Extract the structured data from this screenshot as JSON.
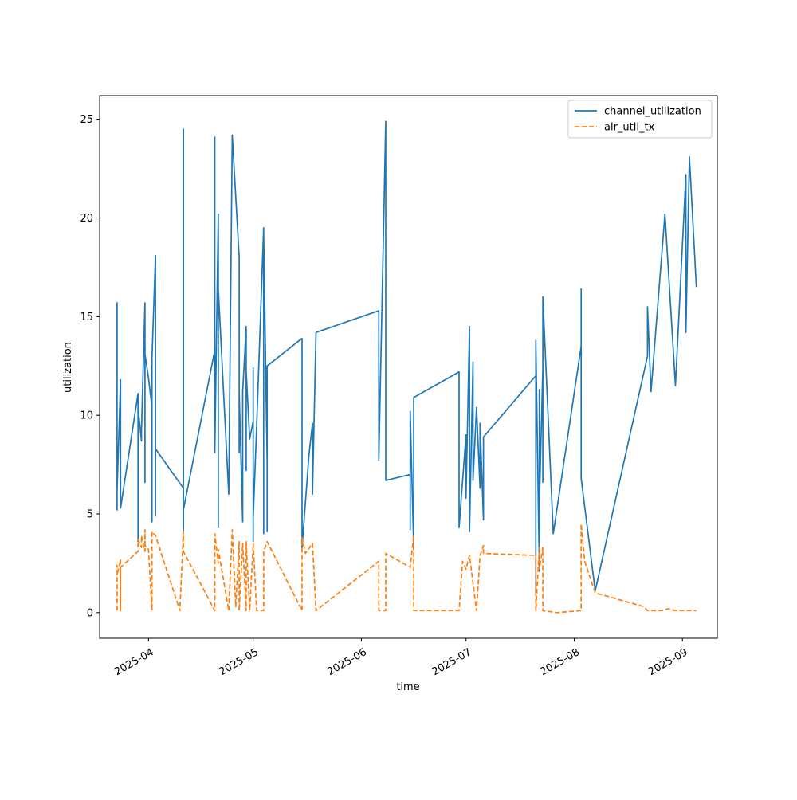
{
  "chart_data": {
    "type": "line",
    "title": "",
    "xlabel": "time",
    "ylabel": "utilization",
    "x_scale": "date",
    "xlim": [
      "2025-03-18",
      "2025-09-11"
    ],
    "ylim": [
      -1.3,
      26.2
    ],
    "grid": false,
    "legend_position": "top-right",
    "x_ticks": [
      {
        "value": "2025-04-01",
        "label": "2025-04"
      },
      {
        "value": "2025-05-01",
        "label": "2025-05"
      },
      {
        "value": "2025-06-01",
        "label": "2025-06"
      },
      {
        "value": "2025-07-01",
        "label": "2025-07"
      },
      {
        "value": "2025-08-01",
        "label": "2025-08"
      },
      {
        "value": "2025-09-01",
        "label": "2025-09"
      }
    ],
    "y_ticks": [
      {
        "value": 0,
        "label": "0"
      },
      {
        "value": 5,
        "label": "5"
      },
      {
        "value": 10,
        "label": "10"
      },
      {
        "value": 15,
        "label": "15"
      },
      {
        "value": 20,
        "label": "20"
      },
      {
        "value": 25,
        "label": "25"
      }
    ],
    "series": [
      {
        "name": "channel_utilization",
        "color": "#1f77b4",
        "style": "solid",
        "points": [
          [
            "2025-03-23",
            10.2
          ],
          [
            "2025-03-23",
            5.2
          ],
          [
            "2025-03-23",
            15.7
          ],
          [
            "2025-03-23",
            6.2
          ],
          [
            "2025-03-24",
            11.8
          ],
          [
            "2025-03-24",
            5.3
          ],
          [
            "2025-03-29",
            11.1
          ],
          [
            "2025-03-29",
            3.6
          ],
          [
            "2025-03-29",
            10.4
          ],
          [
            "2025-03-30",
            8.7
          ],
          [
            "2025-03-30",
            9.2
          ],
          [
            "2025-03-31",
            15.7
          ],
          [
            "2025-03-31",
            6.6
          ],
          [
            "2025-03-31",
            13.1
          ],
          [
            "2025-04-01",
            11.9
          ],
          [
            "2025-04-02",
            10.4
          ],
          [
            "2025-04-02",
            4.6
          ],
          [
            "2025-04-02",
            12.9
          ],
          [
            "2025-04-03",
            18.1
          ],
          [
            "2025-04-03",
            4.9
          ],
          [
            "2025-04-03",
            8.3
          ],
          [
            "2025-04-11",
            6.3
          ],
          [
            "2025-04-11",
            24.5
          ],
          [
            "2025-04-11",
            4.1
          ],
          [
            "2025-04-11",
            5.2
          ],
          [
            "2025-04-20",
            13.3
          ],
          [
            "2025-04-20",
            24.1
          ],
          [
            "2025-04-20",
            8.1
          ],
          [
            "2025-04-21",
            20.2
          ],
          [
            "2025-04-21",
            4.3
          ],
          [
            "2025-04-21",
            16.4
          ],
          [
            "2025-04-24",
            6.0
          ],
          [
            "2025-04-25",
            24.2
          ],
          [
            "2025-04-27",
            18.0
          ],
          [
            "2025-04-27",
            8.1
          ],
          [
            "2025-04-27",
            11.2
          ],
          [
            "2025-04-28",
            4.6
          ],
          [
            "2025-04-28",
            11.2
          ],
          [
            "2025-04-29",
            14.5
          ],
          [
            "2025-04-29",
            7.2
          ],
          [
            "2025-04-29",
            12.2
          ],
          [
            "2025-04-30",
            8.8
          ],
          [
            "2025-05-01",
            9.7
          ],
          [
            "2025-05-01",
            3.6
          ],
          [
            "2025-05-01",
            12.4
          ],
          [
            "2025-05-01",
            4.8
          ],
          [
            "2025-05-02",
            9.4
          ],
          [
            "2025-05-04",
            19.5
          ],
          [
            "2025-05-04",
            4.0
          ],
          [
            "2025-05-04",
            19.2
          ],
          [
            "2025-05-05",
            7.6
          ],
          [
            "2025-05-05",
            11.2
          ],
          [
            "2025-05-05",
            4.1
          ],
          [
            "2025-05-05",
            12.5
          ],
          [
            "2025-05-15",
            13.9
          ],
          [
            "2025-05-15",
            3.3
          ],
          [
            "2025-05-17",
            8.0
          ],
          [
            "2025-05-18",
            9.6
          ],
          [
            "2025-05-18",
            6.0
          ],
          [
            "2025-05-19",
            14.2
          ],
          [
            "2025-06-06",
            15.3
          ],
          [
            "2025-06-06",
            7.7
          ],
          [
            "2025-06-08",
            24.9
          ],
          [
            "2025-06-08",
            6.7
          ],
          [
            "2025-06-15",
            7.0
          ],
          [
            "2025-06-15",
            10.2
          ],
          [
            "2025-06-15",
            4.2
          ],
          [
            "2025-06-15",
            10.2
          ],
          [
            "2025-06-16",
            3.2
          ],
          [
            "2025-06-16",
            10.9
          ],
          [
            "2025-06-29",
            12.2
          ],
          [
            "2025-06-29",
            4.3
          ],
          [
            "2025-07-01",
            9.0
          ],
          [
            "2025-07-01",
            5.8
          ],
          [
            "2025-07-02",
            14.5
          ],
          [
            "2025-07-02",
            4.1
          ],
          [
            "2025-07-03",
            12.7
          ],
          [
            "2025-07-03",
            6.7
          ],
          [
            "2025-07-04",
            10.4
          ],
          [
            "2025-07-05",
            6.3
          ],
          [
            "2025-07-05",
            9.6
          ],
          [
            "2025-07-06",
            4.7
          ],
          [
            "2025-07-06",
            8.9
          ],
          [
            "2025-07-21",
            12.0
          ],
          [
            "2025-07-21",
            1.0
          ],
          [
            "2025-07-21",
            13.8
          ],
          [
            "2025-07-22",
            2.1
          ],
          [
            "2025-07-22",
            11.3
          ],
          [
            "2025-07-22",
            5.4
          ],
          [
            "2025-07-23",
            12.4
          ],
          [
            "2025-07-23",
            6.6
          ],
          [
            "2025-07-23",
            16.0
          ],
          [
            "2025-07-26",
            4.0
          ],
          [
            "2025-08-03",
            13.5
          ],
          [
            "2025-08-03",
            9.9
          ],
          [
            "2025-08-03",
            16.4
          ],
          [
            "2025-08-03",
            6.8
          ],
          [
            "2025-08-07",
            1.1
          ],
          [
            "2025-08-22",
            13.0
          ],
          [
            "2025-08-22",
            15.5
          ],
          [
            "2025-08-23",
            11.2
          ],
          [
            "2025-08-27",
            20.2
          ],
          [
            "2025-08-30",
            11.5
          ],
          [
            "2025-09-02",
            22.2
          ],
          [
            "2025-09-02",
            14.2
          ],
          [
            "2025-09-03",
            23.1
          ],
          [
            "2025-09-05",
            16.5
          ]
        ]
      },
      {
        "name": "air_util_tx",
        "color": "#ff7f0e",
        "style": "dashed",
        "points": [
          [
            "2025-03-23",
            0.1
          ],
          [
            "2025-03-23",
            2.4
          ],
          [
            "2025-03-23",
            1.9
          ],
          [
            "2025-03-24",
            2.7
          ],
          [
            "2025-03-24",
            0.1
          ],
          [
            "2025-03-24",
            2.3
          ],
          [
            "2025-03-29",
            3.1
          ],
          [
            "2025-03-29",
            3.7
          ],
          [
            "2025-03-30",
            3.3
          ],
          [
            "2025-03-30",
            3.9
          ],
          [
            "2025-03-31",
            3.1
          ],
          [
            "2025-03-31",
            4.2
          ],
          [
            "2025-03-31",
            3.4
          ],
          [
            "2025-04-01",
            3.2
          ],
          [
            "2025-04-02",
            0.1
          ],
          [
            "2025-04-02",
            4.1
          ],
          [
            "2025-04-03",
            3.9
          ],
          [
            "2025-04-10",
            0.1
          ],
          [
            "2025-04-11",
            4.1
          ],
          [
            "2025-04-11",
            3.1
          ],
          [
            "2025-04-20",
            0.1
          ],
          [
            "2025-04-20",
            4.0
          ],
          [
            "2025-04-21",
            2.5
          ],
          [
            "2025-04-21",
            3.2
          ],
          [
            "2025-04-24",
            0.1
          ],
          [
            "2025-04-25",
            4.2
          ],
          [
            "2025-04-26",
            0.3
          ],
          [
            "2025-04-27",
            3.6
          ],
          [
            "2025-04-27",
            0.1
          ],
          [
            "2025-04-28",
            3.5
          ],
          [
            "2025-04-29",
            0.1
          ],
          [
            "2025-04-29",
            3.6
          ],
          [
            "2025-04-30",
            0.1
          ],
          [
            "2025-05-01",
            3.5
          ],
          [
            "2025-05-02",
            0.1
          ],
          [
            "2025-05-04",
            0.1
          ],
          [
            "2025-05-04",
            3.1
          ],
          [
            "2025-05-05",
            3.6
          ],
          [
            "2025-05-15",
            0.1
          ],
          [
            "2025-05-15",
            3.8
          ],
          [
            "2025-05-16",
            3.0
          ],
          [
            "2025-05-18",
            3.5
          ],
          [
            "2025-05-19",
            0.1
          ],
          [
            "2025-06-06",
            2.6
          ],
          [
            "2025-06-06",
            0.1
          ],
          [
            "2025-06-08",
            0.1
          ],
          [
            "2025-06-08",
            3.0
          ],
          [
            "2025-06-15",
            2.3
          ],
          [
            "2025-06-16",
            3.9
          ],
          [
            "2025-06-16",
            0.1
          ],
          [
            "2025-06-29",
            0.1
          ],
          [
            "2025-06-30",
            2.6
          ],
          [
            "2025-07-01",
            2.2
          ],
          [
            "2025-07-02",
            2.9
          ],
          [
            "2025-07-04",
            0.1
          ],
          [
            "2025-07-05",
            2.9
          ],
          [
            "2025-07-06",
            3.4
          ],
          [
            "2025-07-06",
            3.0
          ],
          [
            "2025-07-21",
            2.9
          ],
          [
            "2025-07-21",
            0.1
          ],
          [
            "2025-07-22",
            3.3
          ],
          [
            "2025-07-22",
            2.2
          ],
          [
            "2025-07-23",
            3.3
          ],
          [
            "2025-07-23",
            0.1
          ],
          [
            "2025-07-27",
            0.0
          ],
          [
            "2025-08-03",
            0.1
          ],
          [
            "2025-08-03",
            4.5
          ],
          [
            "2025-08-04",
            2.6
          ],
          [
            "2025-08-07",
            1.0
          ],
          [
            "2025-08-21",
            0.3
          ],
          [
            "2025-08-22",
            0.1
          ],
          [
            "2025-08-26",
            0.1
          ],
          [
            "2025-08-28",
            0.2
          ],
          [
            "2025-08-30",
            0.1
          ],
          [
            "2025-09-02",
            0.1
          ],
          [
            "2025-09-05",
            0.1
          ]
        ]
      }
    ]
  }
}
